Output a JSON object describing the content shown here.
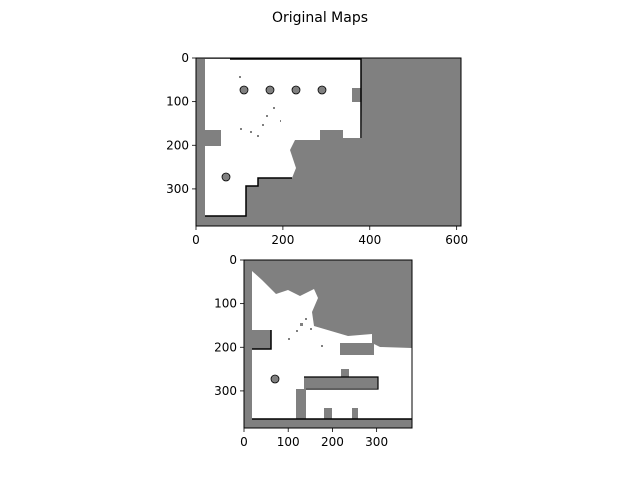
{
  "figure": {
    "title": "Original Maps"
  },
  "colors": {
    "occupied": "#808080",
    "free": "#ffffff",
    "wall": "#000000",
    "frame": "#000000"
  },
  "chart_data": [
    {
      "type": "image",
      "name": "",
      "xlim": [
        0,
        610
      ],
      "ylim": [
        385,
        0
      ],
      "xticks": [
        0,
        200,
        400,
        600
      ],
      "yticks": [
        0,
        100,
        200,
        300
      ],
      "xtick_labels": [
        "0",
        "200",
        "400",
        "600"
      ],
      "ytick_labels": [
        "0",
        "100",
        "200",
        "300"
      ]
    },
    {
      "type": "image",
      "name": "",
      "xlim": [
        0,
        380
      ],
      "ylim": [
        385,
        0
      ],
      "xticks": [
        0,
        100,
        200,
        300
      ],
      "yticks": [
        0,
        100,
        200,
        300
      ],
      "xtick_labels": [
        "0",
        "100",
        "200",
        "300"
      ],
      "ytick_labels": [
        "0",
        "100",
        "200",
        "300"
      ]
    }
  ]
}
